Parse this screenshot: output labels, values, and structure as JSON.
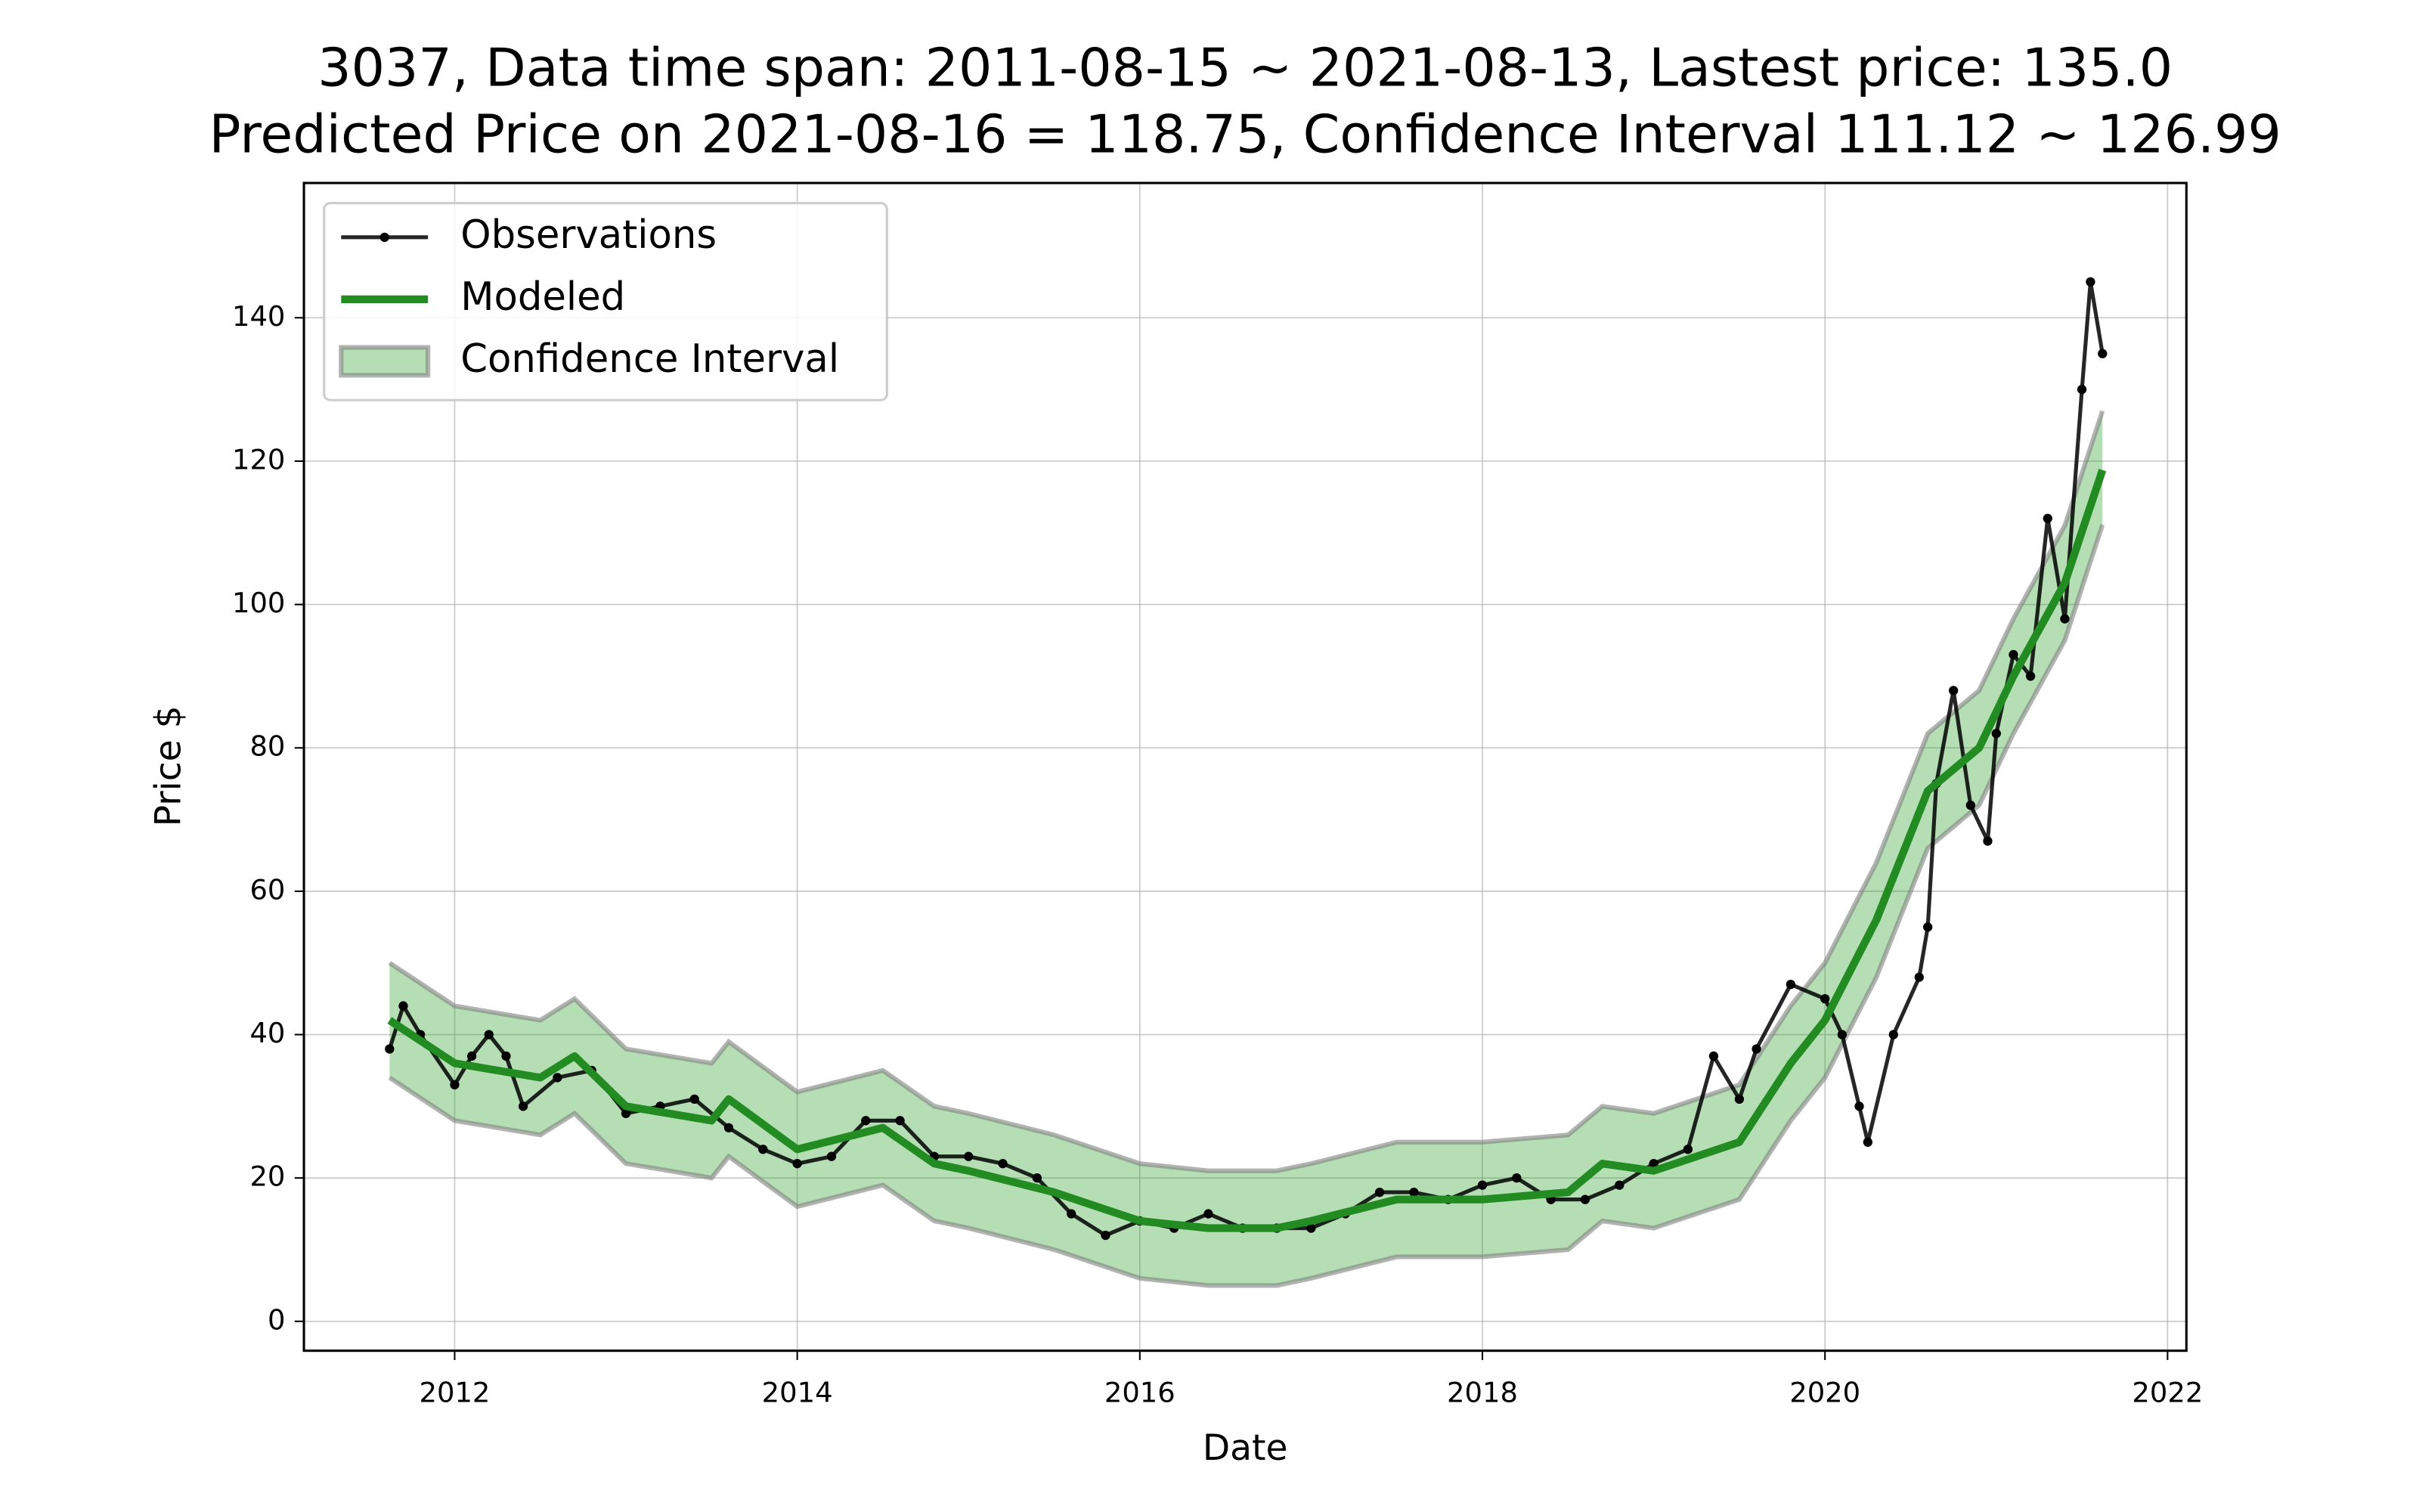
{
  "chart_data": {
    "type": "line",
    "title": "3037, Data time span: 2011-08-15 ~ 2021-08-13, Lastest price: 135.0",
    "subtitle": "Predicted Price on 2021-08-16 = 118.75, Confidence Interval 111.12 ~ 126.99",
    "x_label": "Date",
    "y_label": "Price $",
    "xlim": [
      2011.12,
      2022.11
    ],
    "ylim": [
      -4.1,
      158.8
    ],
    "xticks": [
      2012,
      2014,
      2016,
      2018,
      2020,
      2022
    ],
    "yticks": [
      0,
      20,
      40,
      60,
      80,
      100,
      120,
      140
    ],
    "grid": true,
    "legend": "upper left",
    "series": [
      {
        "name": "Observations",
        "color": "#000000",
        "x": [
          2011.62,
          2011.7,
          2011.8,
          2012.0,
          2012.1,
          2012.2,
          2012.3,
          2012.4,
          2012.6,
          2012.8,
          2013.0,
          2013.2,
          2013.4,
          2013.6,
          2013.8,
          2014.0,
          2014.2,
          2014.4,
          2014.6,
          2014.8,
          2015.0,
          2015.2,
          2015.4,
          2015.6,
          2015.8,
          2016.0,
          2016.2,
          2016.4,
          2016.6,
          2016.8,
          2017.0,
          2017.2,
          2017.4,
          2017.6,
          2017.8,
          2018.0,
          2018.2,
          2018.4,
          2018.6,
          2018.8,
          2019.0,
          2019.2,
          2019.35,
          2019.5,
          2019.6,
          2019.8,
          2020.0,
          2020.1,
          2020.2,
          2020.25,
          2020.4,
          2020.55,
          2020.6,
          2020.65,
          2020.75,
          2020.85,
          2020.95,
          2021.0,
          2021.1,
          2021.2,
          2021.3,
          2021.4,
          2021.5,
          2021.55,
          2021.62
        ],
        "values": [
          38,
          44,
          40,
          33,
          37,
          40,
          37,
          30,
          34,
          35,
          29,
          30,
          31,
          27,
          24,
          22,
          23,
          28,
          28,
          23,
          23,
          22,
          20,
          15,
          12,
          14,
          13,
          15,
          13,
          13,
          13,
          15,
          18,
          18,
          17,
          19,
          20,
          17,
          17,
          19,
          22,
          24,
          37,
          31,
          38,
          47,
          45,
          40,
          30,
          25,
          40,
          48,
          55,
          75,
          88,
          72,
          67,
          82,
          93,
          90,
          112,
          98,
          130,
          145,
          135
        ]
      },
      {
        "name": "Modeled",
        "color": "#228b22",
        "x": [
          2011.62,
          2012.0,
          2012.5,
          2012.7,
          2013.0,
          2013.5,
          2013.6,
          2014.0,
          2014.5,
          2014.8,
          2015.0,
          2015.5,
          2016.0,
          2016.4,
          2016.8,
          2017.0,
          2017.5,
          2018.0,
          2018.5,
          2018.7,
          2019.0,
          2019.5,
          2019.8,
          2020.0,
          2020.3,
          2020.6,
          2020.9,
          2021.1,
          2021.4,
          2021.62
        ],
        "values": [
          42,
          36,
          34,
          37,
          30,
          28,
          31,
          24,
          27,
          22,
          21,
          18,
          14,
          13,
          13,
          14,
          17,
          17,
          18,
          22,
          21,
          25,
          36,
          42,
          56,
          74,
          80,
          90,
          103,
          118.75
        ]
      },
      {
        "name": "Confidence Interval",
        "color": "#2ca02c",
        "x": [
          2011.62,
          2012.0,
          2012.5,
          2012.7,
          2013.0,
          2013.5,
          2013.6,
          2014.0,
          2014.5,
          2014.8,
          2015.0,
          2015.5,
          2016.0,
          2016.4,
          2016.8,
          2017.0,
          2017.5,
          2018.0,
          2018.5,
          2018.7,
          2019.0,
          2019.5,
          2019.8,
          2020.0,
          2020.3,
          2020.6,
          2020.9,
          2021.1,
          2021.4,
          2021.62
        ],
        "low": [
          34,
          28,
          26,
          29,
          22,
          20,
          23,
          16,
          19,
          14,
          13,
          10,
          6,
          5,
          5,
          6,
          9,
          9,
          10,
          14,
          13,
          17,
          28,
          34,
          48,
          66,
          72,
          82,
          95,
          111.12
        ],
        "high": [
          50,
          44,
          42,
          45,
          38,
          36,
          39,
          32,
          35,
          30,
          29,
          26,
          22,
          21,
          21,
          22,
          25,
          25,
          26,
          30,
          29,
          33,
          44,
          50,
          64,
          82,
          88,
          98,
          111,
          126.99
        ]
      }
    ]
  }
}
